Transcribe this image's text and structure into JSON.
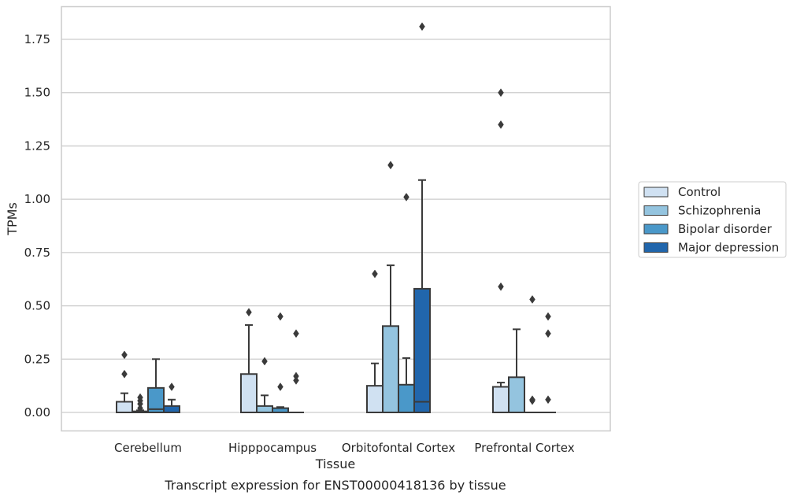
{
  "chart_data": {
    "type": "boxplot",
    "title": "Transcript expression for ENST00000418136 by tissue",
    "xlabel": "Tissue",
    "ylabel": "TPMs",
    "ylim": [
      -0.09,
      1.9
    ],
    "yticks": [
      "0.00",
      "0.25",
      "0.50",
      "0.75",
      "1.00",
      "1.25",
      "1.50",
      "1.75"
    ],
    "ytick_values": [
      0,
      0.25,
      0.5,
      0.75,
      1.0,
      1.25,
      1.5,
      1.75
    ],
    "grid": true,
    "legend_position": "right",
    "categories": [
      "Cerebellum",
      "Hipppocampus",
      "Orbitofontal Cortex",
      "Prefrontal Cortex"
    ],
    "series": [
      {
        "name": "Control",
        "color": "#d0e1f2",
        "boxes": [
          {
            "whislo": 0,
            "q1": 0,
            "med": 0,
            "q3": 0.05,
            "whishi": 0.09,
            "fliers": [
              0.18,
              0.27
            ]
          },
          {
            "whislo": 0,
            "q1": 0,
            "med": 0,
            "q3": 0.18,
            "whishi": 0.41,
            "fliers": [
              0.47
            ]
          },
          {
            "whislo": 0,
            "q1": 0,
            "med": 0,
            "q3": 0.125,
            "whishi": 0.23,
            "fliers": [
              0.65
            ]
          },
          {
            "whislo": 0,
            "q1": 0,
            "med": 0,
            "q3": 0.12,
            "whishi": 0.14,
            "fliers": [
              0.59,
              1.35,
              1.5
            ]
          }
        ]
      },
      {
        "name": "Schizophrenia",
        "color": "#94c4df",
        "boxes": [
          {
            "whislo": 0,
            "q1": 0,
            "med": 0,
            "q3": 0.005,
            "whishi": 0.01,
            "fliers": [
              0.02,
              0.04,
              0.055,
              0.07
            ]
          },
          {
            "whislo": 0,
            "q1": 0,
            "med": 0,
            "q3": 0.03,
            "whishi": 0.08,
            "fliers": [
              0.24
            ]
          },
          {
            "whislo": 0,
            "q1": 0,
            "med": 0,
            "q3": 0.405,
            "whishi": 0.69,
            "fliers": [
              1.16
            ]
          },
          {
            "whislo": 0,
            "q1": 0,
            "med": 0,
            "q3": 0.165,
            "whishi": 0.39,
            "fliers": []
          }
        ]
      },
      {
        "name": "Bipolar disorder",
        "color": "#4a98c9",
        "boxes": [
          {
            "whislo": 0,
            "q1": 0,
            "med": 0.015,
            "q3": 0.115,
            "whishi": 0.25,
            "fliers": []
          },
          {
            "whislo": 0,
            "q1": 0,
            "med": 0,
            "q3": 0.02,
            "whishi": 0.025,
            "fliers": [
              0.12,
              0.45
            ]
          },
          {
            "whislo": 0,
            "q1": 0,
            "med": 0,
            "q3": 0.13,
            "whishi": 0.255,
            "fliers": [
              1.01
            ]
          },
          {
            "whislo": 0,
            "q1": 0,
            "med": 0,
            "q3": 0,
            "whishi": 0,
            "fliers": [
              0.055,
              0.06,
              0.53
            ]
          }
        ]
      },
      {
        "name": "Major depression",
        "color": "#2166ac",
        "boxes": [
          {
            "whislo": 0,
            "q1": 0,
            "med": 0,
            "q3": 0.03,
            "whishi": 0.06,
            "fliers": [
              0.12
            ]
          },
          {
            "whislo": 0,
            "q1": 0,
            "med": 0,
            "q3": 0,
            "whishi": 0,
            "fliers": [
              0.15,
              0.17,
              0.37
            ]
          },
          {
            "whislo": 0,
            "q1": 0,
            "med": 0.05,
            "q3": 0.58,
            "whishi": 1.09,
            "fliers": [
              1.81
            ]
          },
          {
            "whislo": 0,
            "q1": 0,
            "med": 0,
            "q3": 0,
            "whishi": 0,
            "fliers": [
              0.06,
              0.37,
              0.45
            ]
          }
        ]
      }
    ]
  }
}
